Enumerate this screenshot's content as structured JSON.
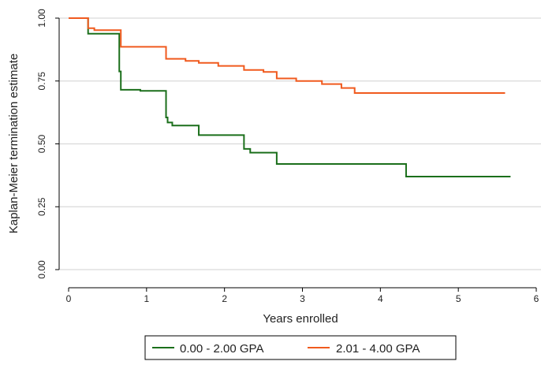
{
  "chart_data": {
    "type": "line",
    "title": "",
    "xlabel": "Years enrolled",
    "ylabel": "Kaplan-Meier termination estimate",
    "xlim": [
      0,
      6
    ],
    "ylim": [
      0,
      1
    ],
    "x_ticks": [
      0,
      1,
      2,
      3,
      4,
      5,
      6
    ],
    "y_ticks": [
      0,
      0.25,
      0.5,
      0.75,
      1
    ],
    "x_tick_labels": [
      "0",
      "1",
      "2",
      "3",
      "4",
      "5",
      "6"
    ],
    "y_tick_labels": [
      "0.00",
      "0.25",
      "0.50",
      "0.75",
      "1.00"
    ],
    "grid": "horizontal",
    "legend_position": "bottom",
    "step": true,
    "series": [
      {
        "name": "0.00 - 2.00 GPA",
        "color": "#1b6f1b",
        "x": [
          0,
          0.25,
          0.65,
          0.67,
          0.92,
          1.25,
          1.27,
          1.33,
          1.67,
          2.25,
          2.33,
          2.67,
          4.33,
          5.67
        ],
        "y": [
          1.0,
          0.938,
          0.788,
          0.715,
          0.711,
          0.605,
          0.585,
          0.573,
          0.535,
          0.48,
          0.465,
          0.42,
          0.37,
          0.37
        ]
      },
      {
        "name": "2.01 - 4.00 GPA",
        "color": "#f05a1e",
        "x": [
          0,
          0.25,
          0.33,
          0.67,
          1.25,
          1.5,
          1.67,
          1.92,
          2.25,
          2.5,
          2.67,
          2.92,
          3.25,
          3.5,
          3.67,
          5.6
        ],
        "y": [
          1.0,
          0.96,
          0.952,
          0.886,
          0.838,
          0.83,
          0.822,
          0.81,
          0.794,
          0.786,
          0.76,
          0.75,
          0.738,
          0.722,
          0.702,
          0.702
        ]
      }
    ]
  }
}
